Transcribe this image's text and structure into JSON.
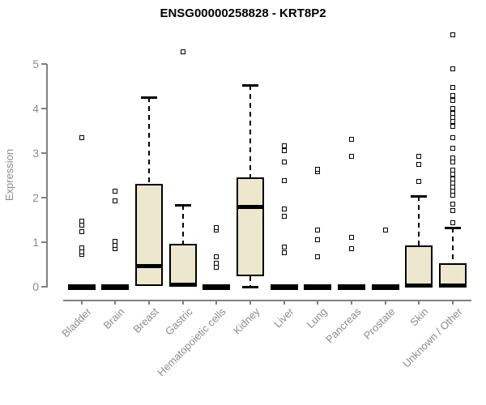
{
  "title": "ENSG00000258828 - KRT8P2",
  "chart_data": {
    "type": "boxplot",
    "title": "ENSG00000258828 - KRT8P2",
    "xlabel": "",
    "ylabel": "Expression",
    "ylim": [
      0,
      5.7
    ],
    "yticks": [
      0,
      1,
      2,
      3,
      4,
      5
    ],
    "grid": false,
    "legend": "none",
    "colors": {
      "box_fill": "#EDE7CE",
      "box_line": "#000000",
      "axis_color": "#808080",
      "text_color": "#8c8c8c",
      "background": "#ffffff"
    },
    "categories": [
      "Bladder",
      "Brain",
      "Breast",
      "Gastric",
      "Hematopoietic cells",
      "Kidney",
      "Liver",
      "Lung",
      "Pancreas",
      "Prostate",
      "Skin",
      "Unknown / Other"
    ],
    "series": [
      {
        "label": "Bladder",
        "q1": 0,
        "median": 0,
        "q3": 0,
        "whisker_high": 0,
        "whisker_low": null,
        "outliers": [
          0.72,
          0.79,
          0.88,
          1.24,
          1.38,
          1.47,
          3.35
        ]
      },
      {
        "label": "Brain",
        "q1": 0,
        "median": 0,
        "q3": 0,
        "whisker_high": 0,
        "whisker_low": null,
        "outliers": [
          0.85,
          0.92,
          1.01,
          1.92,
          2.15
        ]
      },
      {
        "label": "Breast",
        "q1": 0.02,
        "median": 0.47,
        "q3": 2.31,
        "whisker_high": 4.25,
        "whisker_low": null,
        "outliers": []
      },
      {
        "label": "Gastric",
        "q1": 0,
        "median": 0.05,
        "q3": 0.97,
        "whisker_high": 1.84,
        "whisker_low": null,
        "outliers": [
          5.27
        ]
      },
      {
        "label": "Hematopoietic cells",
        "q1": 0,
        "median": 0,
        "q3": 0,
        "whisker_high": 0,
        "whisker_low": null,
        "outliers": [
          0.44,
          0.53,
          0.68,
          1.28,
          1.33
        ]
      },
      {
        "label": "Kidney",
        "q1": 0.23,
        "median": 1.8,
        "q3": 2.46,
        "whisker_high": 4.52,
        "whisker_low": 0,
        "outliers": []
      },
      {
        "label": "Liver",
        "q1": 0,
        "median": 0,
        "q3": 0,
        "whisker_high": 0,
        "whisker_low": null,
        "outliers": [
          0.77,
          0.89,
          1.59,
          1.75,
          2.38,
          2.8,
          3.06,
          3.16
        ]
      },
      {
        "label": "Lung",
        "q1": 0,
        "median": 0,
        "q3": 0,
        "whisker_high": 0,
        "whisker_low": null,
        "outliers": [
          0.67,
          1.05,
          1.27,
          2.58,
          2.63
        ]
      },
      {
        "label": "Pancreas",
        "q1": 0,
        "median": 0,
        "q3": 0,
        "whisker_high": 0,
        "whisker_low": null,
        "outliers": [
          0.86,
          1.11,
          2.92,
          3.31
        ]
      },
      {
        "label": "Prostate",
        "q1": 0,
        "median": 0,
        "q3": 0,
        "whisker_high": 0,
        "whisker_low": null,
        "outliers": [
          1.27
        ]
      },
      {
        "label": "Skin",
        "q1": 0,
        "median": 0.04,
        "q3": 0.92,
        "whisker_high": 2.04,
        "whisker_low": null,
        "outliers": [
          2.37,
          2.75,
          2.93
        ]
      },
      {
        "label": "Unknown / Other",
        "q1": 0,
        "median": 0.04,
        "q3": 0.52,
        "whisker_high": 1.33,
        "whisker_low": null,
        "outliers": [
          1.44,
          1.71,
          1.85,
          2.05,
          2.15,
          2.24,
          2.33,
          2.42,
          2.53,
          2.62,
          2.8,
          2.89,
          3.11,
          3.35,
          3.6,
          3.71,
          3.8,
          3.89,
          4.0,
          4.18,
          4.3,
          4.47,
          4.89,
          5.66
        ]
      }
    ]
  }
}
